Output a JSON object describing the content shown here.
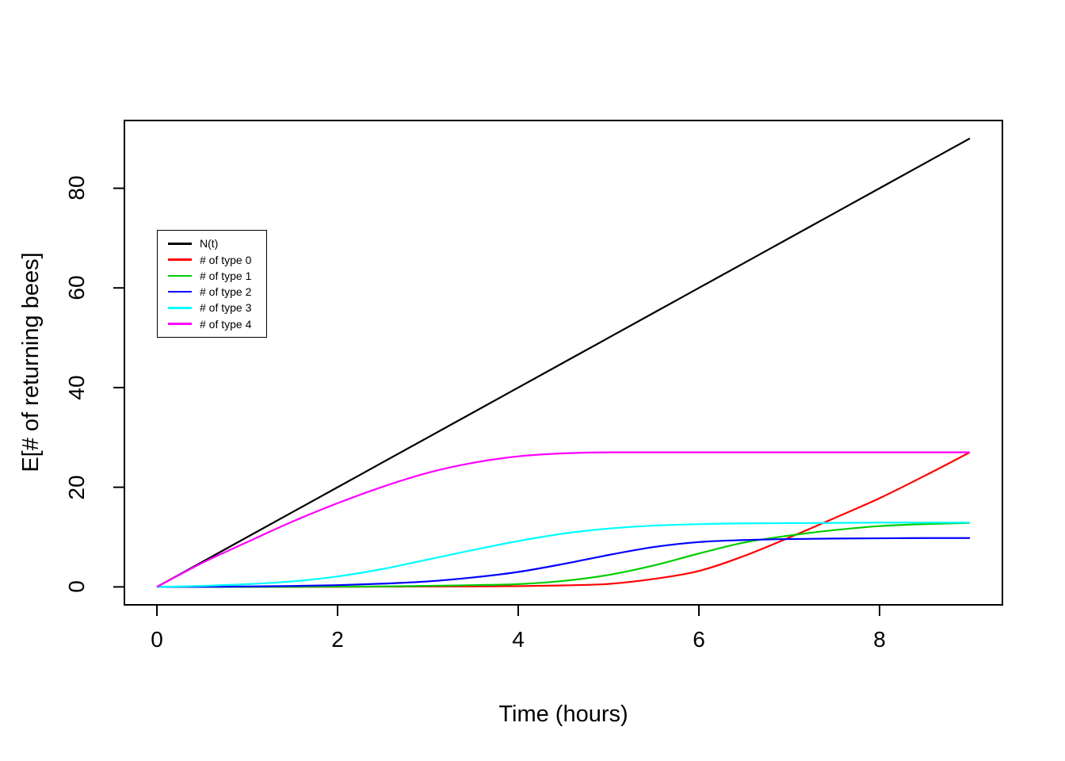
{
  "figure": {
    "background": "#ffffff",
    "title": ""
  },
  "axes": {
    "xlabel": "Time (hours)",
    "ylabel": "E[# of returning bees]",
    "x_ticks": [
      0,
      2,
      4,
      6,
      8
    ],
    "y_ticks": [
      0,
      20,
      40,
      60,
      80
    ],
    "box_color": "#000000"
  },
  "chart_data": {
    "type": "line",
    "title": "",
    "xlabel": "Time (hours)",
    "ylabel": "E[# of returning bees]",
    "xlim": [
      0,
      9
    ],
    "ylim": [
      0,
      90
    ],
    "grid": false,
    "legend_position": "upper-left-inside",
    "x": [
      0,
      0.5,
      1,
      1.5,
      2,
      2.5,
      3,
      3.5,
      4,
      4.5,
      5,
      5.5,
      6,
      6.5,
      7,
      7.5,
      8,
      8.5,
      9
    ],
    "series": [
      {
        "name": "N(t)",
        "color": "#000000",
        "values": [
          0,
          5,
          10,
          15,
          20,
          25,
          30,
          35,
          40,
          45,
          50,
          55,
          60,
          65,
          70,
          75,
          80,
          85,
          90
        ]
      },
      {
        "name": "# of type 0",
        "color": "#FF0000",
        "values": [
          0,
          0,
          0,
          0,
          0.02,
          0.05,
          0.08,
          0.1,
          0.15,
          0.3,
          0.6,
          1.6,
          3.2,
          6.2,
          9.9,
          13.8,
          17.8,
          22.3,
          27
        ]
      },
      {
        "name": "# of type 1",
        "color": "#00CD00",
        "values": [
          0,
          0,
          0,
          0.02,
          0.05,
          0.1,
          0.2,
          0.35,
          0.55,
          1.2,
          2.4,
          4.3,
          6.7,
          8.9,
          10.3,
          11.4,
          12.2,
          12.6,
          12.85
        ]
      },
      {
        "name": "# of type 2",
        "color": "#0000FF",
        "values": [
          0,
          0.02,
          0.08,
          0.18,
          0.35,
          0.65,
          1.1,
          1.9,
          3.0,
          4.6,
          6.4,
          8.0,
          9.0,
          9.4,
          9.6,
          9.7,
          9.75,
          9.8,
          9.8
        ]
      },
      {
        "name": "# of type 3",
        "color": "#00FFFF",
        "values": [
          0,
          0.2,
          0.55,
          1.1,
          2.1,
          3.6,
          5.5,
          7.4,
          9.2,
          10.7,
          11.7,
          12.3,
          12.6,
          12.75,
          12.8,
          12.85,
          12.9,
          12.9,
          12.9
        ]
      },
      {
        "name": "# of type 4",
        "color": "#FF00FF",
        "values": [
          0,
          4.8,
          9.0,
          13.1,
          16.8,
          20.1,
          22.9,
          24.9,
          26.2,
          26.8,
          27,
          27,
          27,
          27,
          27,
          27,
          27,
          27,
          27
        ]
      }
    ]
  }
}
